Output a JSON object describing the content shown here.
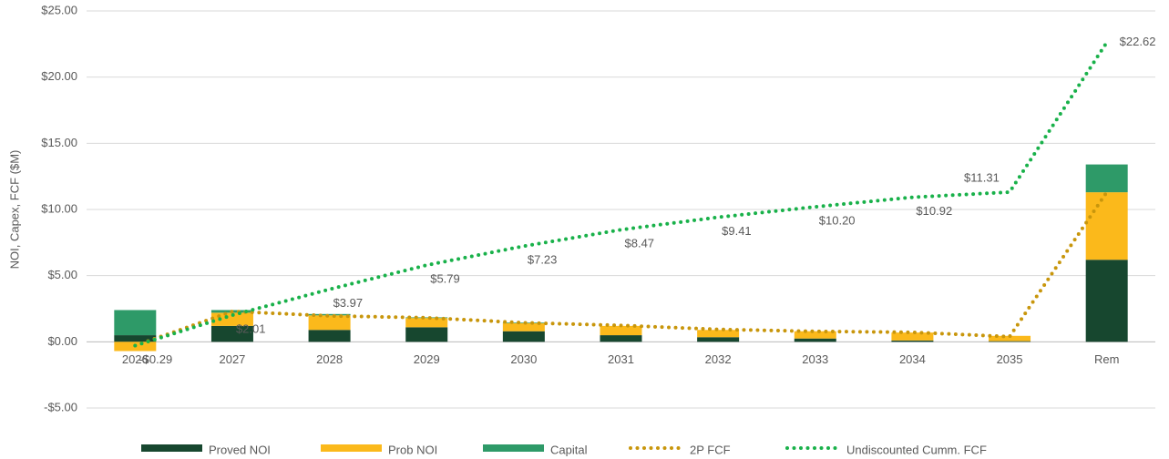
{
  "chart_data": {
    "type": "bar",
    "y_label": "NOI, Capex, FCF ($M)",
    "categories": [
      "2026",
      "2027",
      "2028",
      "2029",
      "2030",
      "2031",
      "2032",
      "2033",
      "2034",
      "2035",
      "Rem"
    ],
    "series": [
      {
        "name": "Proved NOI",
        "type": "bar",
        "color": "#17472f",
        "values": [
          0.5,
          1.2,
          0.9,
          1.1,
          0.8,
          0.5,
          0.35,
          0.25,
          0.1,
          0.05,
          6.2
        ]
      },
      {
        "name": "Prob NOI",
        "type": "bar",
        "color": "#fbb91b",
        "values": [
          -0.7,
          1.0,
          1.1,
          0.7,
          0.6,
          0.7,
          0.55,
          0.55,
          0.6,
          0.4,
          5.1
        ]
      },
      {
        "name": "Capital",
        "type": "bar",
        "color": "#2e9a68",
        "values": [
          1.9,
          0.2,
          0.1,
          0.05,
          0.05,
          0,
          0,
          0,
          0,
          0,
          2.1
        ]
      },
      {
        "name": "2P FCF",
        "type": "line",
        "color": "#c8960c",
        "values": [
          -0.29,
          2.3,
          1.96,
          1.82,
          1.44,
          1.24,
          0.94,
          0.79,
          0.72,
          0.39,
          11.31
        ]
      },
      {
        "name": "Undiscounted Cumm. FCF",
        "type": "line",
        "color": "#19b14a",
        "values": [
          -0.29,
          2.01,
          3.97,
          5.79,
          7.23,
          8.47,
          9.41,
          10.2,
          10.92,
          11.31,
          22.62
        ],
        "value_labels": [
          "-$0.29",
          "$2.01",
          "$3.97",
          "$5.79",
          "$7.23",
          "$8.47",
          "$9.41",
          "$10.20",
          "$10.92",
          "$11.31",
          "$22.62"
        ]
      }
    ],
    "ylim": [
      -5,
      25
    ],
    "yticks": [
      {
        "value": -5,
        "label": "-$5.00"
      },
      {
        "value": 0,
        "label": "$0.00"
      },
      {
        "value": 5,
        "label": "$5.00"
      },
      {
        "value": 10,
        "label": "$10.00"
      },
      {
        "value": 15,
        "label": "$15.00"
      },
      {
        "value": 20,
        "label": "$20.00"
      },
      {
        "value": 25,
        "label": "$25.00"
      }
    ],
    "grid": true,
    "legend": "bottom"
  }
}
